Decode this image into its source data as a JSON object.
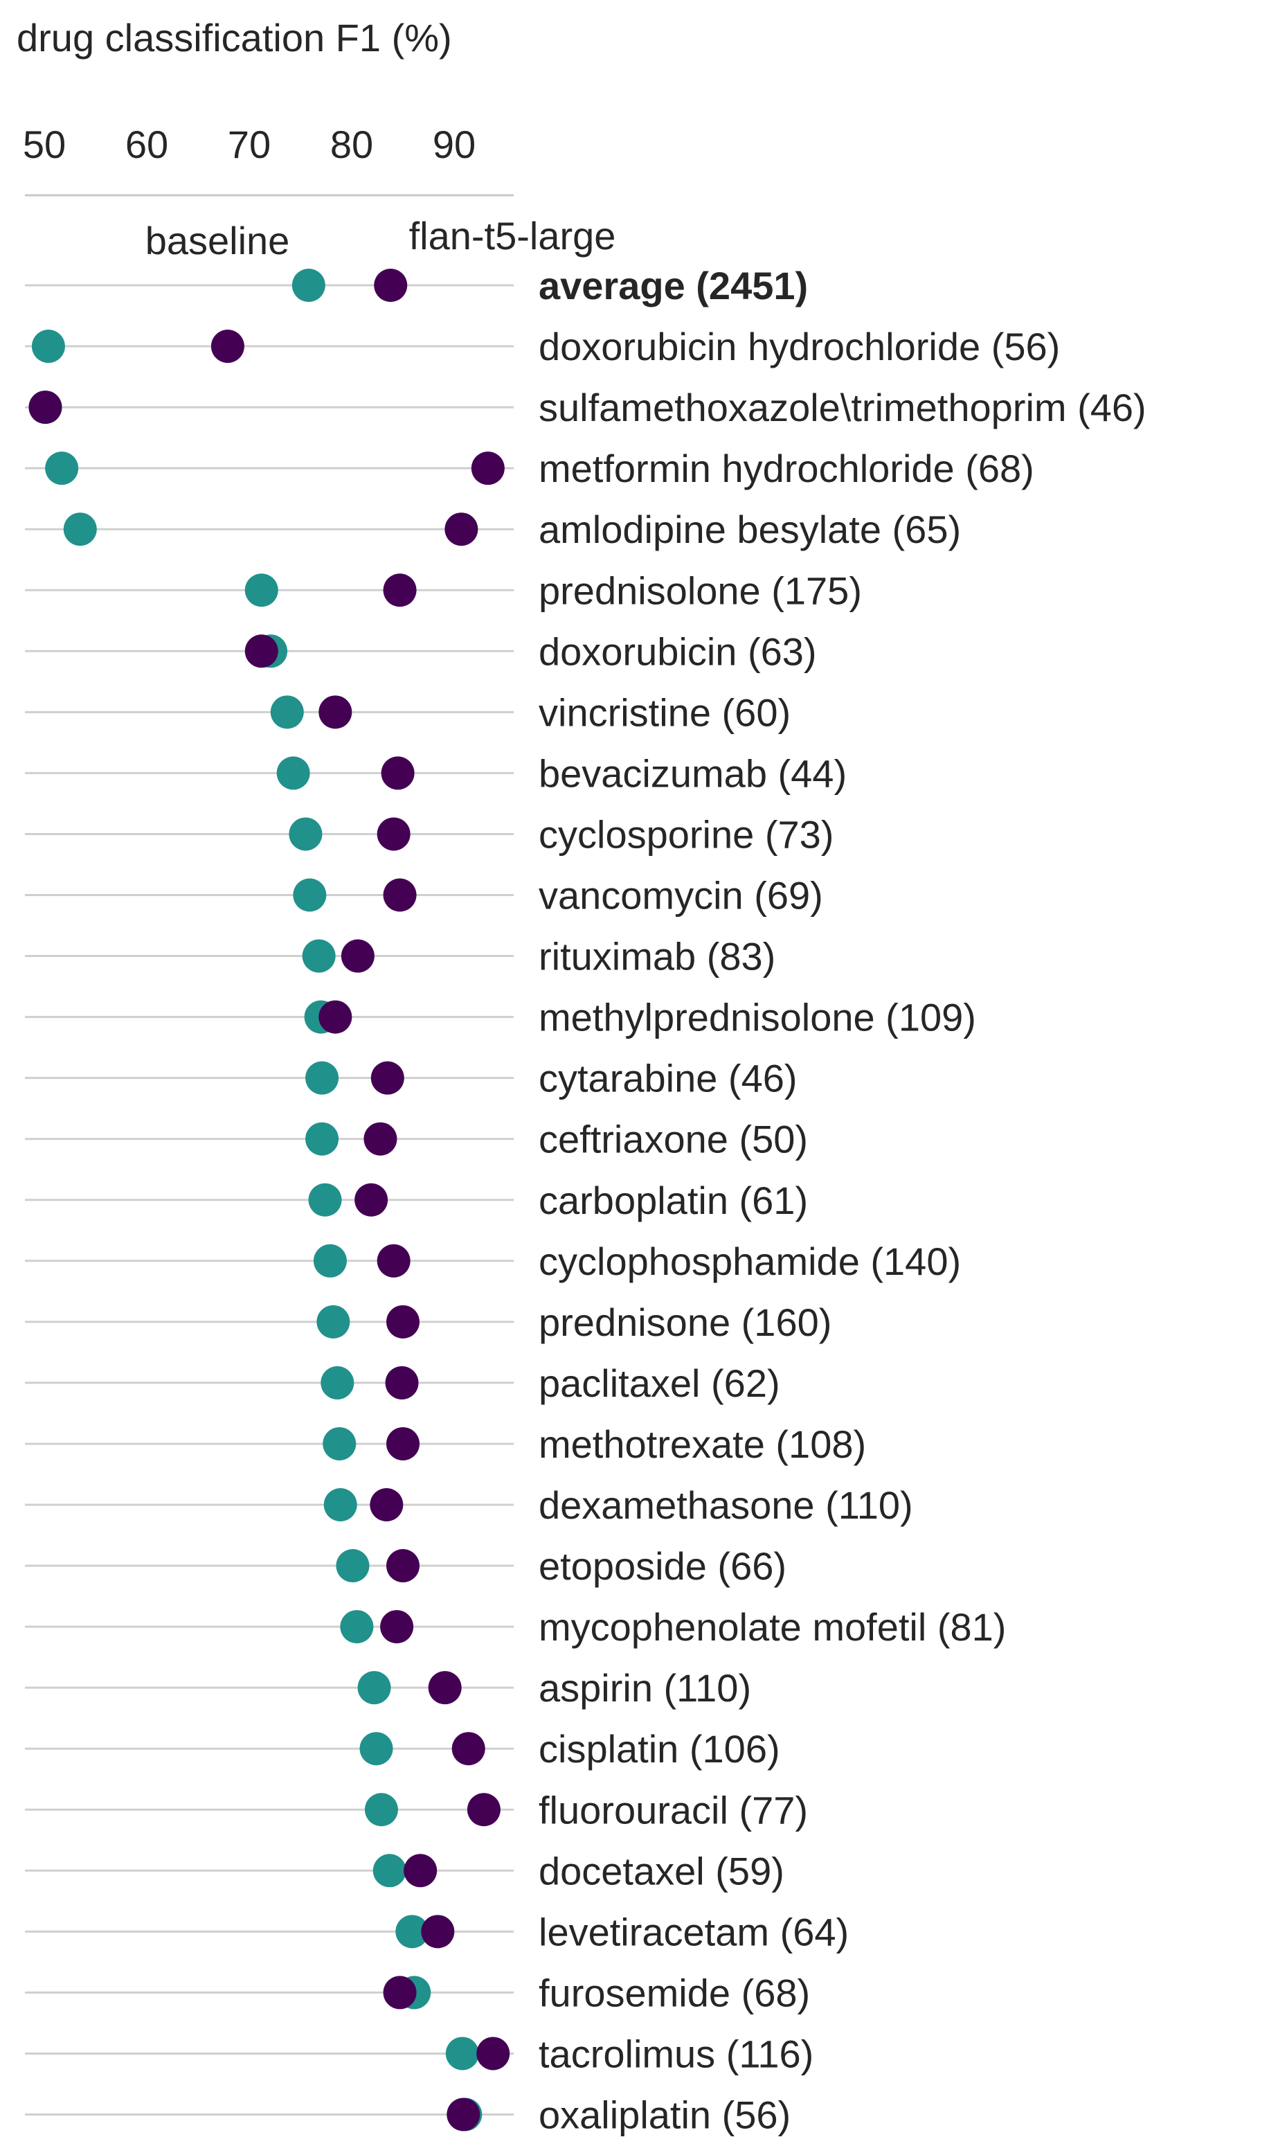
{
  "chart_data": {
    "type": "scatter",
    "title": "drug classification F1 (%)",
    "xlim": [
      48,
      97
    ],
    "xticks": [
      50,
      60,
      70,
      80,
      90
    ],
    "grid": false,
    "series": [
      {
        "name": "baseline",
        "color": "#21918c"
      },
      {
        "name": "flan-t5-large",
        "color": "#440154"
      }
    ],
    "rows": [
      {
        "label": "average (2451)",
        "bold": true,
        "baseline": 75.8,
        "flan": 83.8
      },
      {
        "label": "doxorubicin hydrochloride (56)",
        "baseline": 50.4,
        "flan": 67.9
      },
      {
        "label": "sulfamethoxazole\\trimethoprim (46)",
        "baseline": 50.1,
        "flan": 50.1
      },
      {
        "label": "metformin hydrochloride (68)",
        "baseline": 51.7,
        "flan": 93.3
      },
      {
        "label": "amlodipine besylate (65)",
        "baseline": 53.5,
        "flan": 90.7
      },
      {
        "label": "prednisolone (175)",
        "baseline": 71.2,
        "flan": 84.7
      },
      {
        "label": "doxorubicin (63)",
        "baseline": 72.1,
        "flan": 71.2
      },
      {
        "label": "vincristine (60)",
        "baseline": 73.7,
        "flan": 78.4
      },
      {
        "label": "bevacizumab (44)",
        "baseline": 74.3,
        "flan": 84.5
      },
      {
        "label": "cyclosporine (73)",
        "baseline": 75.5,
        "flan": 84.1
      },
      {
        "label": "vancomycin (69)",
        "baseline": 75.9,
        "flan": 84.7
      },
      {
        "label": "rituximab (83)",
        "baseline": 76.8,
        "flan": 80.6
      },
      {
        "label": "methylprednisolone (109)",
        "baseline": 77.0,
        "flan": 78.4
      },
      {
        "label": "cytarabine (46)",
        "baseline": 77.1,
        "flan": 83.5
      },
      {
        "label": "ceftriaxone (50)",
        "baseline": 77.1,
        "flan": 82.8
      },
      {
        "label": "carboplatin (61)",
        "baseline": 77.4,
        "flan": 81.9
      },
      {
        "label": "cyclophosphamide (140)",
        "baseline": 77.9,
        "flan": 84.1
      },
      {
        "label": "prednisone (160)",
        "baseline": 78.2,
        "flan": 85.0
      },
      {
        "label": "paclitaxel (62)",
        "baseline": 78.6,
        "flan": 84.9
      },
      {
        "label": "methotrexate (108)",
        "baseline": 78.8,
        "flan": 85.0
      },
      {
        "label": "dexamethasone (110)",
        "baseline": 78.9,
        "flan": 83.4
      },
      {
        "label": "etoposide (66)",
        "baseline": 80.1,
        "flan": 85.0
      },
      {
        "label": "mycophenolate mofetil (81)",
        "baseline": 80.5,
        "flan": 84.4
      },
      {
        "label": "aspirin (110)",
        "baseline": 82.2,
        "flan": 89.1
      },
      {
        "label": "cisplatin (106)",
        "baseline": 82.4,
        "flan": 91.4
      },
      {
        "label": "fluorouracil (77)",
        "baseline": 82.9,
        "flan": 92.9
      },
      {
        "label": "docetaxel (59)",
        "baseline": 83.7,
        "flan": 86.7
      },
      {
        "label": "levetiracetam (64)",
        "baseline": 85.9,
        "flan": 88.4
      },
      {
        "label": "furosemide (68)",
        "baseline": 86.1,
        "flan": 84.7
      },
      {
        "label": "tacrolimus (116)",
        "baseline": 90.8,
        "flan": 93.8
      },
      {
        "label": "oxaliplatin (56)",
        "baseline": 91.1,
        "flan": 90.9
      }
    ]
  }
}
